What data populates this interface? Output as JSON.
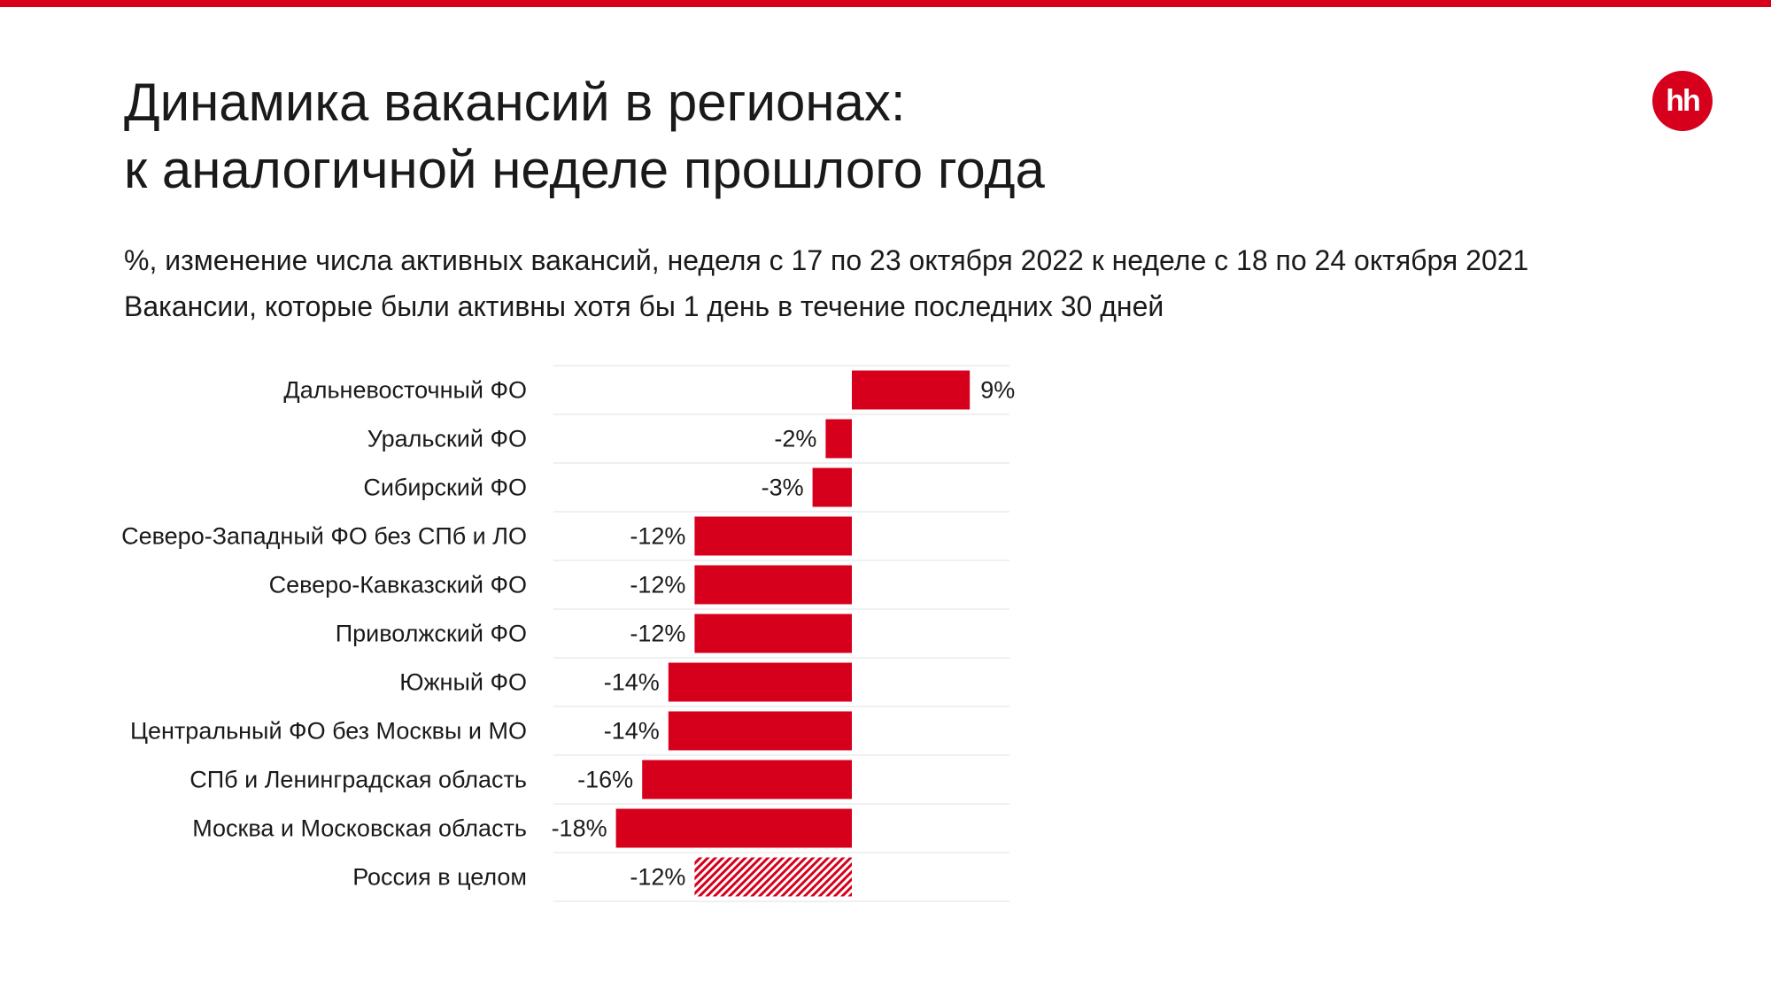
{
  "header": {
    "title_line1": "Динамика вакансий в регионах:",
    "title_line2": "к аналогичной неделе прошлого года",
    "subtitle_line1": "%, изменение числа активных вакансий, неделя с 17 по 23 октября 2022 к неделе с 18 по 24 октября 2021",
    "subtitle_line2": "Вакансии, которые были активны хотя бы 1 день в течение последних 30 дней"
  },
  "logo": {
    "text": "hh",
    "icon": "hh-logo-icon"
  },
  "colors": {
    "accent": "#d6001c",
    "text": "#1a1a1a",
    "grid": "#ececec"
  },
  "chart_data": {
    "type": "bar",
    "orientation": "horizontal",
    "title": "Динамика вакансий в регионах: к аналогичной неделе прошлого года",
    "xlim": [
      -18,
      9
    ],
    "grid": true,
    "categories": [
      "Дальневосточный ФО",
      "Уральский ФО",
      "Сибирский ФО",
      "Северо-Западный ФО без СПб и ЛО",
      "Северо-Кавказский ФО",
      "Приволжский ФО",
      "Южный ФО",
      "Центральный ФО без Москвы и МО",
      "СПб и Ленинградская область",
      "Москва и Московская область",
      "Россия в целом"
    ],
    "values": [
      9,
      -2,
      -3,
      -12,
      -12,
      -12,
      -14,
      -14,
      -16,
      -18,
      -12
    ],
    "labels": [
      "9%",
      "-2%",
      "-3%",
      "-12%",
      "-12%",
      "-12%",
      "-14%",
      "-14%",
      "-16%",
      "-18%",
      "-12%"
    ],
    "highlight": {
      "category": "Россия в целом",
      "style": "hatched"
    }
  }
}
